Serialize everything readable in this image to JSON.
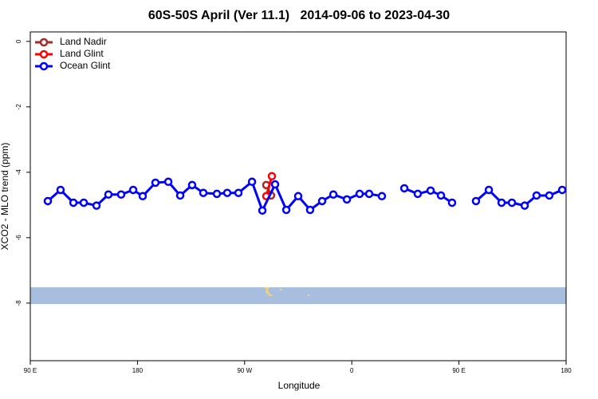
{
  "chart_data": {
    "type": "line",
    "title": "60S-50S April (Ver 11.1)   2014-09-06 to 2023-04-30",
    "x_label": "Longitude",
    "y_label": "XCO2 - MLO trend (ppm)",
    "xlim": [
      90,
      540
    ],
    "ylim": [
      -9.76,
      0.29
    ],
    "xticks": [
      {
        "value": 90,
        "label": "90 E"
      },
      180,
      {
        "value": 270,
        "label": "90 W"
      },
      {
        "value": 360,
        "label": "0"
      },
      {
        "value": 450,
        "label": "90 E"
      },
      {
        "value": 540,
        "label": "180"
      }
    ],
    "yticks": [
      0,
      -2,
      -4,
      -6,
      -8
    ],
    "legend": "top-left",
    "series": [
      {
        "name": "Land Nadir",
        "color": "#a52a2a",
        "x": [
          288.2,
          292.2
        ],
        "values": [
          -4.39,
          -4.71
        ]
      },
      {
        "name": "Land Glint",
        "color": "#ff0000",
        "x": [
          288.2,
          292.9
        ],
        "values": [
          -4.73,
          -4.12
        ]
      },
      {
        "name": "Ocean Glint",
        "color": "#0000ff",
        "x": [
          104.7,
          115.4,
          126.2,
          134.9,
          145.6,
          155.6,
          166.3,
          176.4,
          184.4,
          195.1,
          205.9,
          215.9,
          225.9,
          235.3,
          246.7,
          255.4,
          264.8,
          276.2,
          284.9,
          295.6,
          305.0,
          315.0,
          325.0,
          335.1,
          344.5,
          355.9,
          366.6,
          374.6,
          385.3,
          395.0,
          404.1,
          415.4,
          426.2,
          434.9,
          444.2,
          455.0,
          464.3,
          475.1,
          485.8,
          494.5,
          505.2,
          515.2,
          525.9,
          536.7
        ],
        "values": [
          -4.88,
          -4.54,
          -4.93,
          -4.93,
          -5.02,
          -4.68,
          -4.68,
          -4.54,
          -4.73,
          -4.32,
          -4.29,
          -4.71,
          -4.39,
          -4.63,
          -4.66,
          -4.63,
          -4.63,
          -4.29,
          -5.17,
          -4.37,
          -5.15,
          -4.73,
          -5.15,
          -4.88,
          -4.68,
          -4.83,
          -4.66,
          -4.66,
          -4.73,
          null,
          -4.49,
          -4.66,
          -4.56,
          -4.71,
          -4.93,
          null,
          -4.88,
          -4.54,
          -4.93,
          -4.93,
          -5.02,
          -4.71,
          -4.71,
          -4.54
        ]
      }
    ]
  }
}
